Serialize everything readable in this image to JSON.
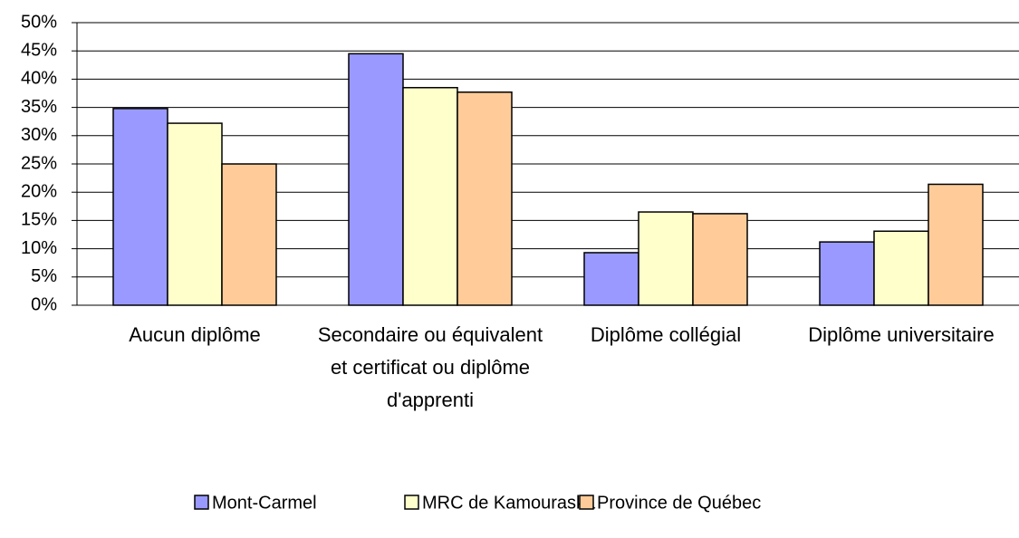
{
  "chart_data": {
    "type": "bar",
    "categories": [
      "Aucun diplôme",
      "Secondaire ou équivalent et certificat ou diplôme d'apprenti",
      "Diplôme collégial",
      "Diplôme universitaire"
    ],
    "series": [
      {
        "name": "Mont-Carmel",
        "color": "#9999ff",
        "values": [
          34.8,
          44.5,
          9.3,
          11.2
        ]
      },
      {
        "name": "MRC de Kamouraska",
        "color": "#ffffcc",
        "values": [
          32.2,
          38.5,
          16.5,
          13.1
        ]
      },
      {
        "name": "Province de Québec",
        "color": "#ffcc99",
        "values": [
          25.0,
          37.7,
          16.2,
          21.4
        ]
      }
    ],
    "ylim": [
      0,
      50
    ],
    "yticks": [
      {
        "value": 0,
        "label": "0%"
      },
      {
        "value": 5,
        "label": "5%"
      },
      {
        "value": 10,
        "label": "10%"
      },
      {
        "value": 15,
        "label": "15%"
      },
      {
        "value": 20,
        "label": "20%"
      },
      {
        "value": 25,
        "label": "25%"
      },
      {
        "value": 30,
        "label": "30%"
      },
      {
        "value": 35,
        "label": "35%"
      },
      {
        "value": 40,
        "label": "40%"
      },
      {
        "value": 45,
        "label": "45%"
      },
      {
        "value": 50,
        "label": "50%"
      }
    ],
    "grid": true,
    "legend": "bottom"
  }
}
